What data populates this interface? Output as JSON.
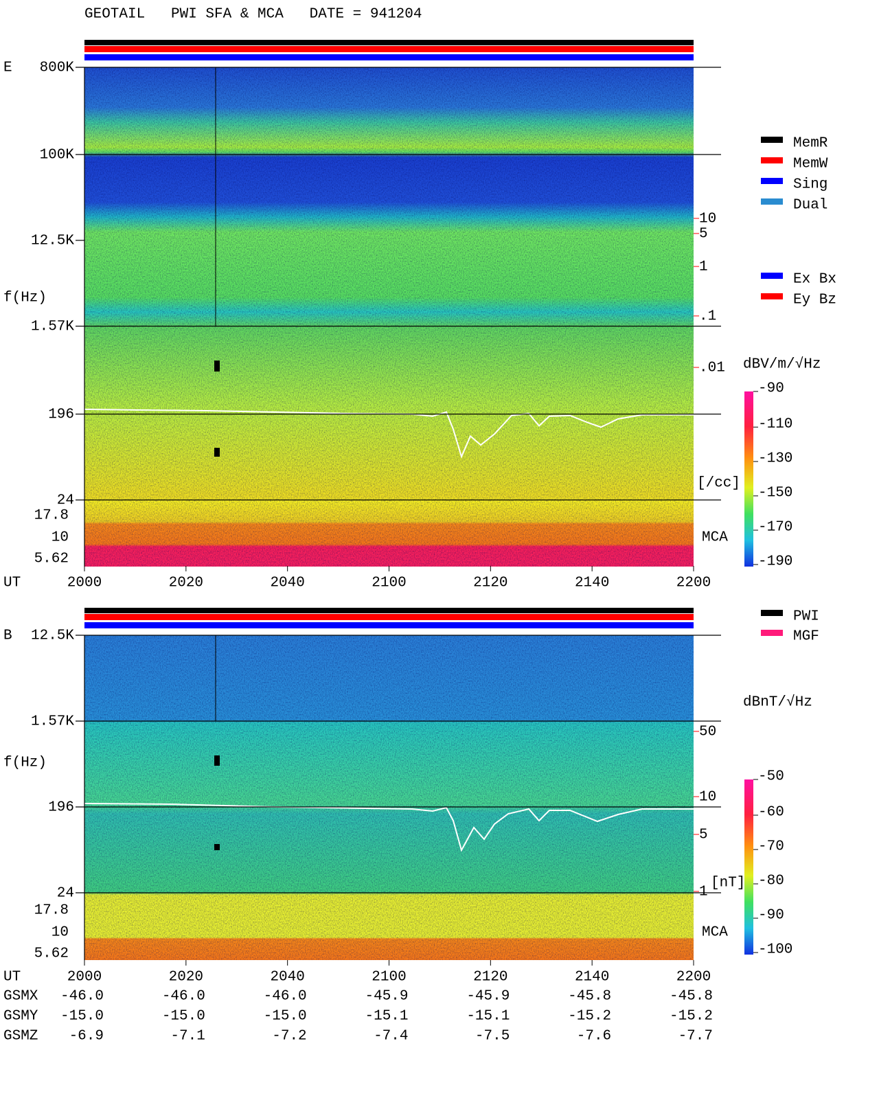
{
  "header": {
    "title": "GEOTAIL   PWI SFA & MCA   DATE = 941204"
  },
  "panel_e": {
    "label": "E",
    "freq_labels": [
      "800K",
      "100K",
      "12.5K",
      "1.57K",
      "196",
      "24"
    ],
    "axis_label": "f(Hz)",
    "mca_labels": [
      "17.8",
      "10",
      "5.62"
    ],
    "mca": "MCA",
    "density_labels": [
      "10",
      "5",
      "1",
      ".1",
      ".01"
    ],
    "density_unit": "[/cc]",
    "legend": [
      "MemR",
      "MemW",
      "Sing",
      "Dual"
    ],
    "legend2": [
      "Ex Bx",
      "Ey Bz"
    ],
    "colorbar_unit": "dBV/m/√Hz",
    "colorbar_ticks": [
      "-90",
      "-110",
      "-130",
      "-150",
      "-170",
      "-190"
    ]
  },
  "panel_b": {
    "label": "B",
    "freq_labels": [
      "12.5K",
      "1.57K",
      "196",
      "24"
    ],
    "axis_label": "f(Hz)",
    "mca_labels": [
      "17.8",
      "10",
      "5.62"
    ],
    "mca": "MCA",
    "field_labels": [
      "50",
      "10",
      "5",
      "1"
    ],
    "field_unit": "[nT]",
    "legend": [
      "PWI",
      "MGF"
    ],
    "colorbar_unit": "dBnT/√Hz",
    "colorbar_ticks": [
      "-50",
      "-60",
      "-70",
      "-80",
      "-90",
      "-100"
    ]
  },
  "time_axis": {
    "label": "UT",
    "ticks": [
      "2000",
      "2020",
      "2040",
      "2100",
      "2120",
      "2140",
      "2200"
    ]
  },
  "orbit": {
    "rows": [
      {
        "label": "GSMX",
        "values": [
          "-46.0",
          "-46.0",
          "-46.0",
          "-45.9",
          "-45.9",
          "-45.8",
          "-45.8"
        ]
      },
      {
        "label": "GSMY",
        "values": [
          "-15.0",
          "-15.0",
          "-15.0",
          "-15.1",
          "-15.1",
          "-15.2",
          "-15.2"
        ]
      },
      {
        "label": "GSMZ",
        "values": [
          "-6.9",
          "-7.1",
          "-7.2",
          "-7.4",
          "-7.5",
          "-7.6",
          "-7.7"
        ]
      }
    ]
  }
}
